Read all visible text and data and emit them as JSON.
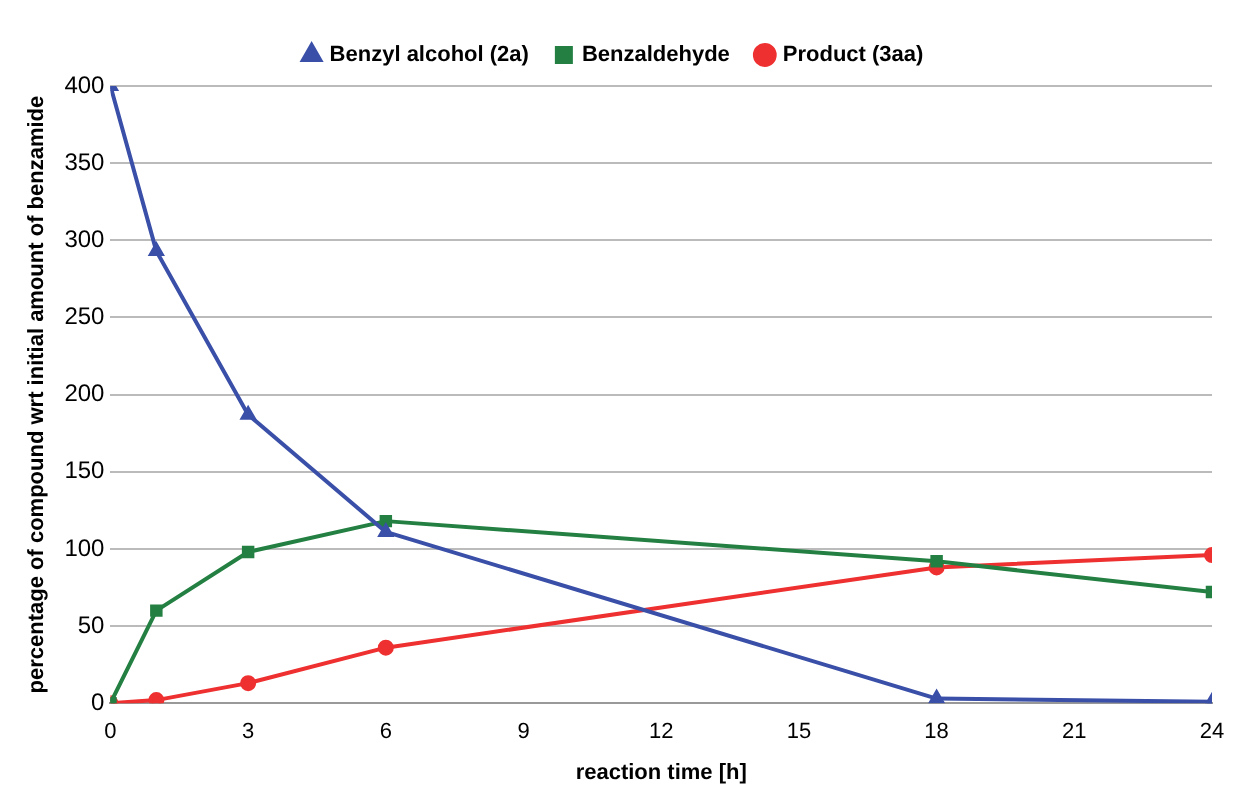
{
  "chart_data": {
    "type": "line",
    "xlabel": "reaction time [h]",
    "ylabel": "percentage of compound wrt initial amount of benzamide",
    "x": [
      0,
      1,
      3,
      6,
      18,
      24
    ],
    "xlim": [
      0,
      24
    ],
    "xticks": [
      0,
      3,
      6,
      9,
      12,
      15,
      18,
      21,
      24
    ],
    "ylim": [
      0,
      400
    ],
    "yticks": [
      0,
      50,
      100,
      150,
      200,
      250,
      300,
      350,
      400
    ],
    "grid": "y",
    "legend": "top",
    "series": [
      {
        "name": "Benzyl alcohol (2a)",
        "color": "#3a4fa8",
        "marker": "triangle",
        "values": [
          400,
          293,
          187,
          111,
          3,
          1
        ]
      },
      {
        "name": "Benzaldehyde",
        "color": "#238042",
        "marker": "square",
        "values": [
          0,
          60,
          98,
          118,
          92,
          72
        ]
      },
      {
        "name": "Product (3aa)",
        "color": "#ee3030",
        "marker": "circle",
        "values": [
          0,
          2,
          13,
          36,
          88,
          96
        ]
      }
    ]
  }
}
